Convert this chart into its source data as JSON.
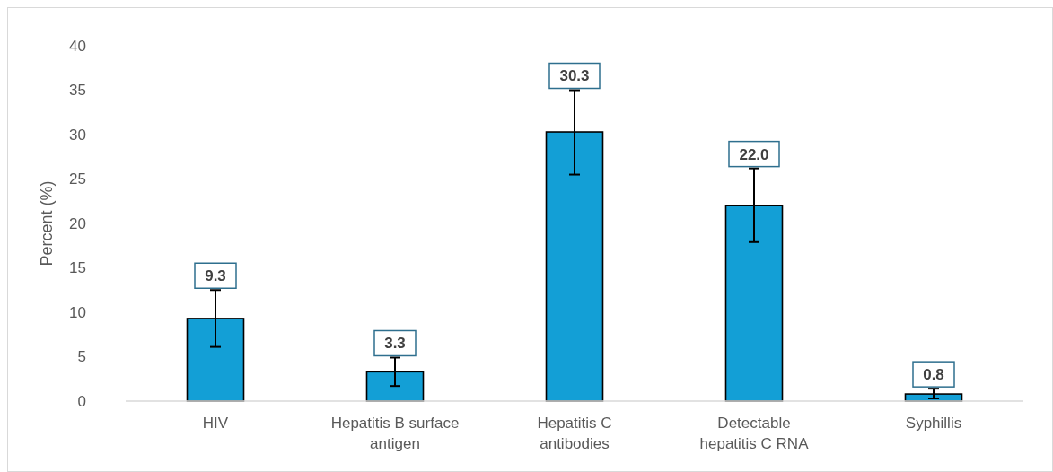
{
  "chart_data": {
    "type": "bar",
    "ylabel": "Percent (%)",
    "categories": [
      "HIV",
      "Hepatitis B surface antigen",
      "Hepatitis C antibodies",
      "Detectable hepatitis C RNA",
      "Syphillis"
    ],
    "values": [
      9.3,
      3.3,
      30.3,
      22.0,
      0.8
    ],
    "errors": [
      [
        6.1,
        12.5
      ],
      [
        1.7,
        4.9
      ],
      [
        25.5,
        35.0
      ],
      [
        17.9,
        26.2
      ],
      [
        0.3,
        1.4
      ]
    ],
    "value_labels": [
      "9.3",
      "3.3",
      "30.3",
      "22.0",
      "0.8"
    ],
    "color": "#139fd6",
    "ylim": [
      0,
      40
    ],
    "yticks": [
      0,
      5,
      10,
      15,
      20,
      25,
      30,
      35,
      40
    ],
    "grid": false
  }
}
